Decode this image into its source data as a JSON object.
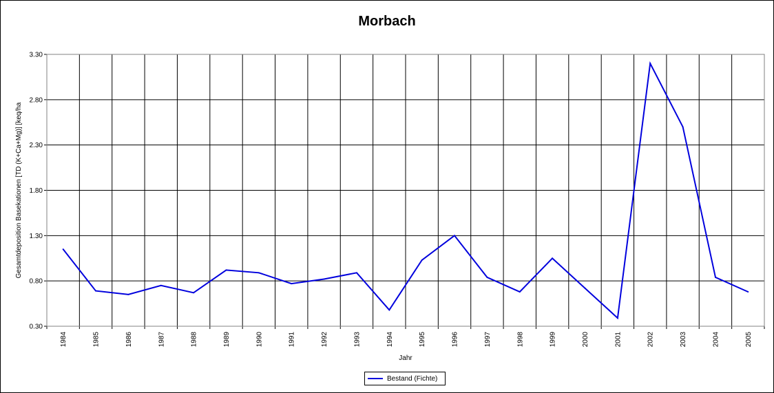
{
  "chart_data": {
    "type": "line",
    "title": "Morbach",
    "xlabel": "Jahr",
    "ylabel": "Gesamtdeposition Basekationen [TD (K+Ca+Mg)] [keq/ha",
    "ylim": [
      0.3,
      3.3
    ],
    "yticks": [
      "0.30",
      "0.80",
      "1.30",
      "1.80",
      "2.30",
      "2.80",
      "3.30"
    ],
    "categories": [
      "1984",
      "1985",
      "1986",
      "1987",
      "1988",
      "1989",
      "1990",
      "1991",
      "1992",
      "1993",
      "1994",
      "1995",
      "1996",
      "1997",
      "1998",
      "1999",
      "2000",
      "2001",
      "2002",
      "2003",
      "2004",
      "2005"
    ],
    "series": [
      {
        "name": "Bestand (Fichte)",
        "color": "#0000dd",
        "values": [
          1.15,
          0.69,
          0.65,
          0.75,
          0.67,
          0.92,
          0.89,
          0.77,
          0.82,
          0.89,
          0.48,
          1.03,
          1.3,
          0.84,
          0.68,
          1.05,
          0.72,
          0.39,
          3.2,
          2.5,
          0.84,
          0.68
        ]
      }
    ],
    "grid": true,
    "legend_position": "bottom-center"
  }
}
